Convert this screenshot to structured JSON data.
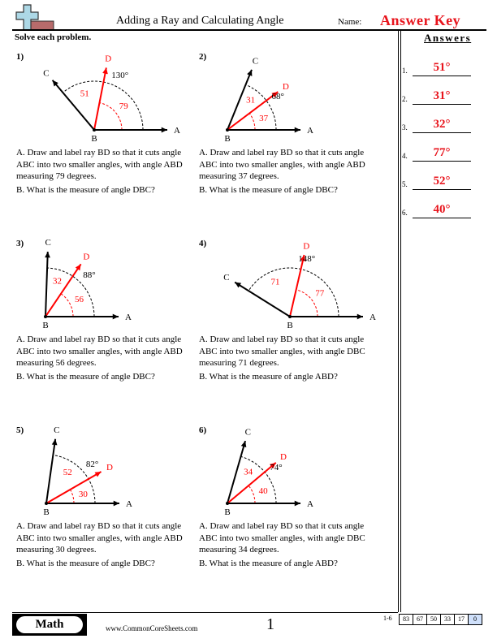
{
  "header": {
    "title": "Adding a Ray and Calculating Angle",
    "name_label": "Name:",
    "answer_key": "Answer Key",
    "logo_icon": "plus-minus-logo-icon"
  },
  "instructions": "Solve each problem.",
  "answers_title": "Answers",
  "answers": [
    {
      "num": "1.",
      "value": "51°"
    },
    {
      "num": "2.",
      "value": "31°"
    },
    {
      "num": "3.",
      "value": "32°"
    },
    {
      "num": "4.",
      "value": "77°"
    },
    {
      "num": "5.",
      "value": "52°"
    },
    {
      "num": "6.",
      "value": "40°"
    }
  ],
  "colors": {
    "accent": "#e8141c",
    "highlight": "#cfe0fb"
  },
  "problems": [
    {
      "num": "1)",
      "abc": 130,
      "abd": 79,
      "total_label": "130°",
      "part1_label": "79",
      "part2_label": "51",
      "labels": {
        "A": "A",
        "B": "B",
        "C": "C",
        "D": "D"
      },
      "line_a": "A. Draw and label ray BD so that it cuts angle ABC into two smaller angles, with angle ABD measuring 79 degrees.",
      "line_b": "B. What is the measure of angle DBC?"
    },
    {
      "num": "2)",
      "abc": 68,
      "abd": 37,
      "total_label": "68°",
      "part1_label": "37",
      "part2_label": "31",
      "labels": {
        "A": "A",
        "B": "B",
        "C": "C",
        "D": "D"
      },
      "line_a": "A. Draw and label ray BD so that it cuts angle ABC into two smaller angles, with angle ABD measuring 37 degrees.",
      "line_b": "B. What is the measure of angle DBC?"
    },
    {
      "num": "3)",
      "abc": 88,
      "abd": 56,
      "total_label": "88°",
      "part1_label": "56",
      "part2_label": "32",
      "labels": {
        "A": "A",
        "B": "B",
        "C": "C",
        "D": "D"
      },
      "line_a": "A. Draw and label ray BD so that it cuts angle ABC into two smaller angles, with angle ABD measuring 56 degrees.",
      "line_b": "B. What is the measure of angle DBC?"
    },
    {
      "num": "4)",
      "abc": 148,
      "abd": 77,
      "total_label": "148°",
      "part1_label": "77",
      "part2_label": "71",
      "labels": {
        "A": "A",
        "B": "B",
        "C": "C",
        "D": "D"
      },
      "line_a": "A. Draw and label ray BD so that it cuts angle ABC into two smaller angles, with angle DBC measuring 71 degrees.",
      "line_b": "B. What is the measure of angle ABD?"
    },
    {
      "num": "5)",
      "abc": 82,
      "abd": 30,
      "total_label": "82°",
      "part1_label": "30",
      "part2_label": "52",
      "labels": {
        "A": "A",
        "B": "B",
        "C": "C",
        "D": "D"
      },
      "line_a": "A. Draw and label ray BD so that it cuts angle ABC into two smaller angles, with angle ABD measuring 30 degrees.",
      "line_b": "B. What is the measure of angle DBC?"
    },
    {
      "num": "6)",
      "abc": 74,
      "abd": 40,
      "total_label": "74°",
      "part1_label": "40",
      "part2_label": "34",
      "labels": {
        "A": "A",
        "B": "B",
        "C": "C",
        "D": "D"
      },
      "line_a": "A. Draw and label ray BD so that it cuts angle ABC into two smaller angles, with angle DBC measuring 34 degrees.",
      "line_b": "B. What is the measure of angle ABD?"
    }
  ],
  "footer": {
    "subject": "Math",
    "website": "www.CommonCoreSheets.com",
    "page": "1",
    "score_range": "1-6",
    "scores": [
      "83",
      "67",
      "50",
      "33",
      "17",
      "0"
    ]
  }
}
